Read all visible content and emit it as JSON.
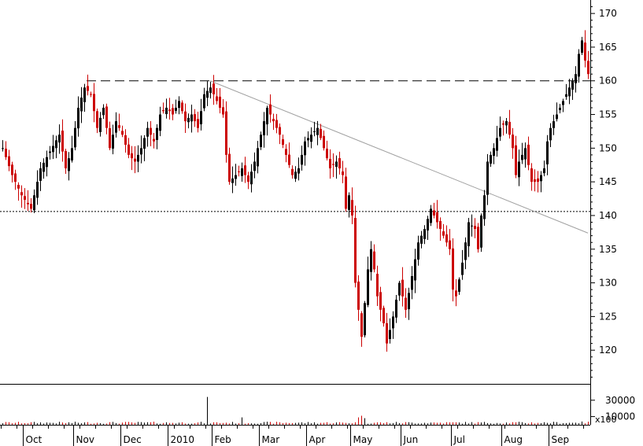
{
  "chart_data": {
    "type": "candlestick",
    "price_axis": {
      "ylim": [
        115,
        172
      ],
      "ticks": [
        120,
        125,
        130,
        135,
        140,
        145,
        150,
        155,
        160,
        165,
        170
      ]
    },
    "volume_axis": {
      "ylim": [
        0,
        50000
      ],
      "ticks": [
        10000,
        30000
      ],
      "tick_labels": [
        "10000",
        "30000"
      ],
      "multiplier_label": "x100"
    },
    "x_months": [
      "Oct",
      "Nov",
      "Dec",
      "2010",
      "Feb",
      "Mar",
      "Apr",
      "May",
      "Jun",
      "Jul",
      "Aug",
      "Sep"
    ],
    "reference_lines": [
      {
        "kind": "dashed-resistance",
        "value": 160
      },
      {
        "kind": "dotted-support",
        "value": 140.6
      }
    ],
    "trend_line": {
      "from": {
        "bar": 66,
        "value": 160
      },
      "to": {
        "bar": 186,
        "value": 137.4
      }
    },
    "colors": {
      "up": "#000000",
      "down": "#cc0000",
      "trend": "#a0a0a0",
      "grid": "#000000"
    },
    "anchors": [
      [
        0,
        150
      ],
      [
        3,
        146
      ],
      [
        6,
        143
      ],
      [
        9,
        141
      ],
      [
        12,
        147
      ],
      [
        15,
        149.5
      ],
      [
        18,
        152
      ],
      [
        20,
        147
      ],
      [
        22,
        150
      ],
      [
        24,
        156
      ],
      [
        26,
        159
      ],
      [
        28,
        158
      ],
      [
        30,
        153
      ],
      [
        32,
        156
      ],
      [
        34,
        150
      ],
      [
        36,
        154
      ],
      [
        38,
        152
      ],
      [
        40,
        149
      ],
      [
        42,
        148
      ],
      [
        44,
        150
      ],
      [
        46,
        153
      ],
      [
        48,
        151
      ],
      [
        50,
        155
      ],
      [
        52,
        156
      ],
      [
        54,
        155
      ],
      [
        56,
        157
      ],
      [
        58,
        154
      ],
      [
        60,
        155
      ],
      [
        62,
        153
      ],
      [
        64,
        158
      ],
      [
        66,
        159
      ],
      [
        68,
        157
      ],
      [
        70,
        155
      ],
      [
        71,
        149
      ],
      [
        72,
        145
      ],
      [
        74,
        146
      ],
      [
        76,
        147
      ],
      [
        78,
        145
      ],
      [
        80,
        148
      ],
      [
        82,
        152
      ],
      [
        84,
        156
      ],
      [
        86,
        154
      ],
      [
        88,
        152
      ],
      [
        90,
        149
      ],
      [
        92,
        146
      ],
      [
        94,
        147
      ],
      [
        96,
        151
      ],
      [
        98,
        152
      ],
      [
        100,
        153
      ],
      [
        102,
        150
      ],
      [
        104,
        147
      ],
      [
        106,
        148
      ],
      [
        108,
        146
      ],
      [
        109,
        141
      ],
      [
        110,
        143
      ],
      [
        111,
        140
      ],
      [
        112,
        130
      ],
      [
        113,
        126
      ],
      [
        114,
        122
      ],
      [
        115,
        127
      ],
      [
        116,
        132
      ],
      [
        117,
        135
      ],
      [
        118,
        132
      ],
      [
        119,
        128
      ],
      [
        120,
        126
      ],
      [
        121,
        124
      ],
      [
        122,
        121
      ],
      [
        124,
        125
      ],
      [
        126,
        130
      ],
      [
        128,
        126
      ],
      [
        130,
        131
      ],
      [
        132,
        136
      ],
      [
        134,
        138
      ],
      [
        136,
        141
      ],
      [
        138,
        139
      ],
      [
        140,
        137
      ],
      [
        142,
        135
      ],
      [
        143,
        129
      ],
      [
        144,
        128
      ],
      [
        146,
        133
      ],
      [
        148,
        139
      ],
      [
        150,
        138
      ],
      [
        151,
        135
      ],
      [
        152,
        140
      ],
      [
        153,
        143
      ],
      [
        154,
        148
      ],
      [
        156,
        150
      ],
      [
        158,
        153
      ],
      [
        160,
        154
      ],
      [
        162,
        150
      ],
      [
        163,
        146
      ],
      [
        164,
        148
      ],
      [
        166,
        150
      ],
      [
        168,
        145
      ],
      [
        170,
        145
      ],
      [
        172,
        147
      ],
      [
        173,
        151
      ],
      [
        174,
        153
      ],
      [
        176,
        155
      ],
      [
        178,
        157
      ],
      [
        180,
        159
      ],
      [
        182,
        161
      ],
      [
        183,
        164
      ],
      [
        184,
        166
      ],
      [
        185,
        163
      ],
      [
        186,
        161
      ]
    ],
    "volume_spikes": [
      [
        65,
        34000
      ],
      [
        76,
        9000
      ],
      [
        113,
        9000
      ],
      [
        114,
        11000
      ],
      [
        115,
        8000
      ],
      [
        184,
        4000
      ]
    ]
  }
}
